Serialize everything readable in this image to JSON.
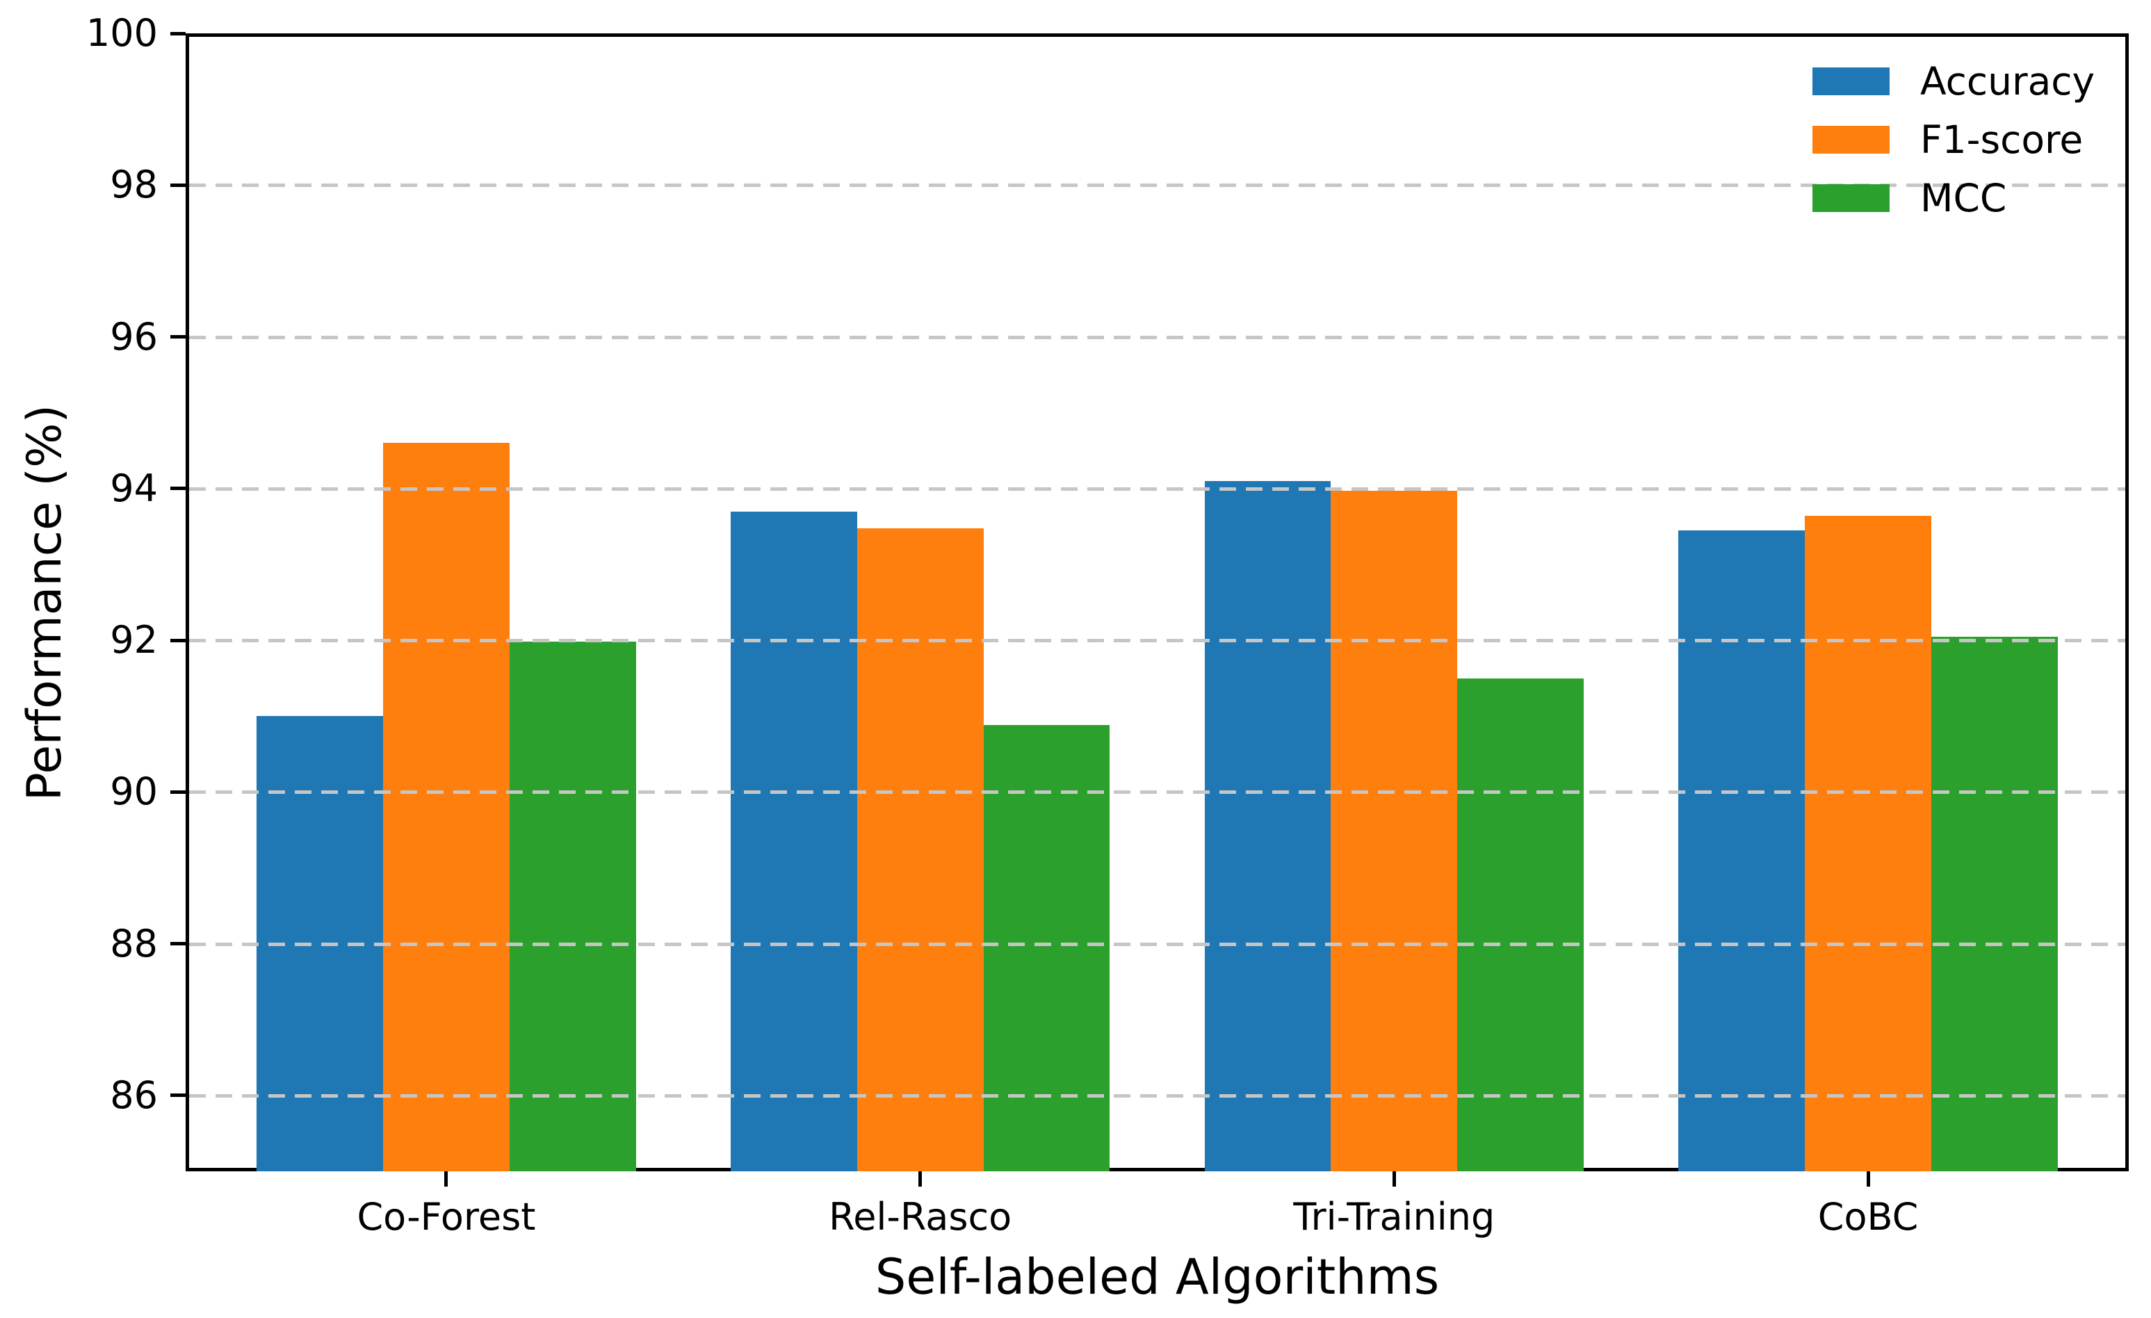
{
  "chart_data": {
    "type": "bar",
    "title": "",
    "xlabel": "Self-labeled Algorithms",
    "ylabel": "Performance (%)",
    "categories": [
      "Co-Forest",
      "Rel-Rasco",
      "Tri-Training",
      "CoBC"
    ],
    "series": [
      {
        "name": "Accuracy",
        "color": "#1f77b4",
        "values": [
          91.0,
          93.7,
          94.1,
          93.45
        ]
      },
      {
        "name": "F1-score",
        "color": "#ff7f0e",
        "values": [
          94.6,
          93.48,
          93.97,
          93.64
        ]
      },
      {
        "name": "MCC",
        "color": "#2ca02c",
        "values": [
          91.98,
          90.88,
          91.5,
          92.05
        ]
      }
    ],
    "ylim": [
      85,
      100
    ],
    "yticks": [
      86,
      88,
      90,
      92,
      94,
      96,
      98,
      100
    ],
    "grid": "horizontal dashed, drawn over bars",
    "gridline_color": "#c6c6c6",
    "spine_color": "#000000",
    "legend_position": "upper right",
    "legend_frame": false
  }
}
